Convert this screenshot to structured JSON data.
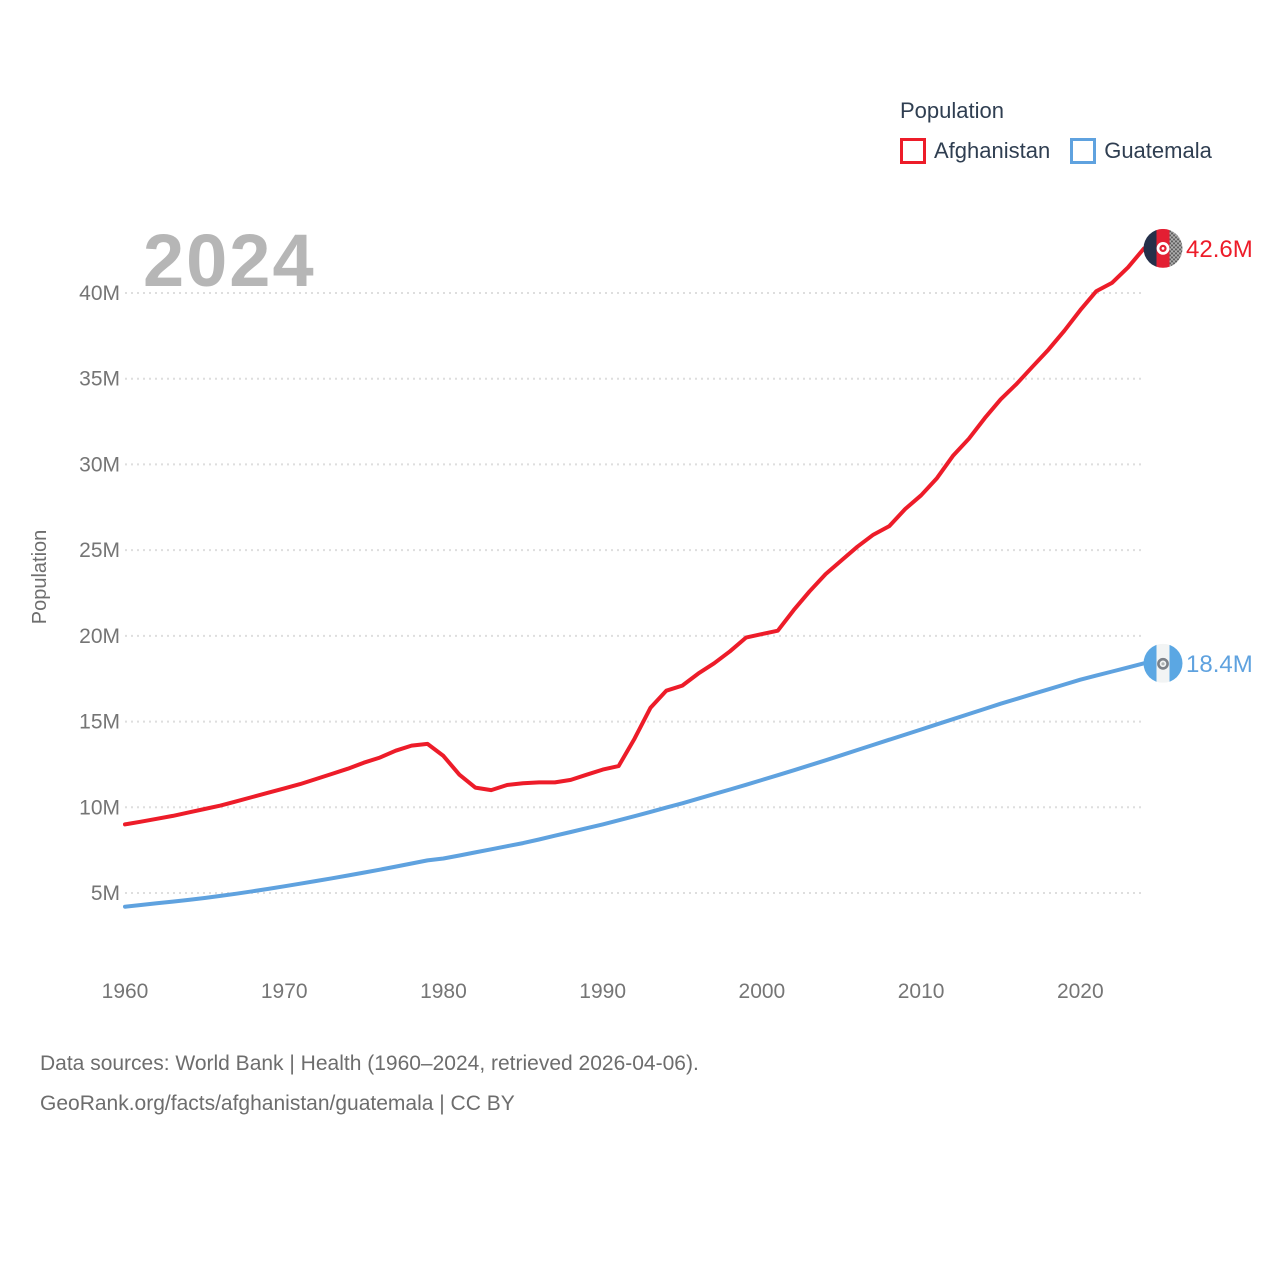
{
  "legend": {
    "title": "Population",
    "items": [
      {
        "label": "Afghanistan",
        "color": "#ed1c29"
      },
      {
        "label": "Guatemala",
        "color": "#5fa2df"
      }
    ]
  },
  "watermark": "2024",
  "footer": {
    "line1": "Data sources: World Bank | Health (1960–2024, retrieved 2026-04-06).",
    "line2": "GeoRank.org/facts/afghanistan/guatemala | CC BY"
  },
  "chart_data": {
    "type": "line",
    "title": "2024",
    "ylabel": "Population",
    "xlim": [
      1960,
      2024
    ],
    "ylim": [
      2.5,
      43.5
    ],
    "grid": "horizontal-dotted",
    "legend_position": "top-right",
    "xticks": [
      {
        "value": 1960,
        "label": "1960"
      },
      {
        "value": 1970,
        "label": "1970"
      },
      {
        "value": 1980,
        "label": "1980"
      },
      {
        "value": 1990,
        "label": "1990"
      },
      {
        "value": 2000,
        "label": "2000"
      },
      {
        "value": 2010,
        "label": "2010"
      },
      {
        "value": 2020,
        "label": "2020"
      }
    ],
    "yticks": [
      {
        "value": 5,
        "label": "5M"
      },
      {
        "value": 10,
        "label": "10M"
      },
      {
        "value": 15,
        "label": "15M"
      },
      {
        "value": 20,
        "label": "20M"
      },
      {
        "value": 25,
        "label": "25M"
      },
      {
        "value": 30,
        "label": "30M"
      },
      {
        "value": 35,
        "label": "35M"
      },
      {
        "value": 40,
        "label": "40M"
      }
    ],
    "x": [
      1960,
      1961,
      1962,
      1963,
      1964,
      1965,
      1966,
      1967,
      1968,
      1969,
      1970,
      1971,
      1972,
      1973,
      1974,
      1975,
      1976,
      1977,
      1978,
      1979,
      1980,
      1981,
      1982,
      1983,
      1984,
      1985,
      1986,
      1987,
      1988,
      1989,
      1990,
      1991,
      1992,
      1993,
      1994,
      1995,
      1996,
      1997,
      1998,
      1999,
      2000,
      2001,
      2002,
      2003,
      2004,
      2005,
      2006,
      2007,
      2008,
      2009,
      2010,
      2011,
      2012,
      2013,
      2014,
      2015,
      2016,
      2017,
      2018,
      2019,
      2020,
      2021,
      2022,
      2023,
      2024
    ],
    "series": [
      {
        "name": "Afghanistan",
        "color": "#ed1c29",
        "icon": "afghanistan-flag",
        "end_label": "42.6M",
        "end_value_millions": 42.6,
        "values": [
          9.0,
          9.16,
          9.33,
          9.5,
          9.7,
          9.9,
          10.1,
          10.35,
          10.6,
          10.85,
          11.1,
          11.35,
          11.65,
          11.95,
          12.25,
          12.6,
          12.9,
          13.3,
          13.6,
          13.7,
          13.0,
          11.9,
          11.15,
          11.0,
          11.3,
          11.4,
          11.45,
          11.45,
          11.6,
          11.9,
          12.2,
          12.4,
          14.0,
          15.8,
          16.8,
          17.1,
          17.8,
          18.4,
          19.1,
          19.9,
          20.1,
          20.3,
          21.5,
          22.6,
          23.6,
          24.4,
          25.2,
          25.9,
          26.4,
          27.4,
          28.2,
          29.2,
          30.5,
          31.5,
          32.7,
          33.8,
          34.7,
          35.7,
          36.7,
          37.8,
          39.0,
          40.1,
          40.6,
          41.5,
          42.6
        ]
      },
      {
        "name": "Guatemala",
        "color": "#5fa2df",
        "icon": "guatemala-flag",
        "end_label": "18.4M",
        "end_value_millions": 18.4,
        "values": [
          4.2,
          4.3,
          4.4,
          4.5,
          4.6,
          4.71,
          4.83,
          4.96,
          5.1,
          5.24,
          5.39,
          5.54,
          5.7,
          5.86,
          6.02,
          6.19,
          6.36,
          6.54,
          6.72,
          6.9,
          7.01,
          7.19,
          7.37,
          7.55,
          7.73,
          7.91,
          8.12,
          8.34,
          8.56,
          8.78,
          9.0,
          9.24,
          9.48,
          9.73,
          9.98,
          10.23,
          10.5,
          10.77,
          11.04,
          11.31,
          11.59,
          11.87,
          12.16,
          12.45,
          12.74,
          13.04,
          13.34,
          13.64,
          13.94,
          14.24,
          14.54,
          14.84,
          15.14,
          15.44,
          15.74,
          16.04,
          16.32,
          16.6,
          16.88,
          17.16,
          17.44,
          17.68,
          17.92,
          18.16,
          18.4
        ]
      }
    ]
  }
}
